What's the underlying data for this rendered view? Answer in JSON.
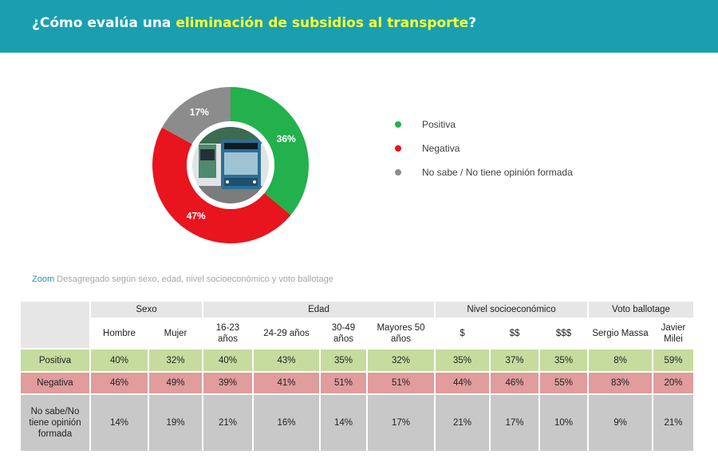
{
  "header": {
    "title_prefix": "¿Cómo evalúa una ",
    "title_highlight": "eliminación de subsidios al transporte",
    "title_suffix": "?",
    "bg_color": "#1a9fb1",
    "highlight_color": "#ffff33"
  },
  "chart_data": {
    "type": "pie",
    "title": "¿Cómo evalúa una eliminación de subsidios al transporte?",
    "categories": [
      "Positiva",
      "Negativa",
      "No sabe / No tiene opinión formada"
    ],
    "values": [
      36,
      47,
      17
    ],
    "labels": [
      "36%",
      "47%",
      "17%"
    ],
    "colors": [
      "#22b14c",
      "#e8141e",
      "#8c8c8c"
    ],
    "legend": "right"
  },
  "legend": {
    "items": [
      {
        "label": "Positiva",
        "color": "#22b14c"
      },
      {
        "label": "Negativa",
        "color": "#e8141e"
      },
      {
        "label": "No sabe / No tiene opinión formada",
        "color": "#8c8c8c"
      }
    ]
  },
  "zoom": {
    "label": "Zoom",
    "text": " Desagregado según sexo, edad, nivel socioeconómico y voto ballotage"
  },
  "table": {
    "groups": [
      {
        "label": "Sexo",
        "span": 2
      },
      {
        "label": "Edad",
        "span": 4
      },
      {
        "label": "Nivel socioeconómico",
        "span": 3
      },
      {
        "label": "Voto ballotage",
        "span": 2
      }
    ],
    "columns": [
      "Hombre",
      "Mujer",
      "16-23 años",
      "24-29 años",
      "30-49 años",
      "Mayores 50 años",
      "$",
      "$$",
      "$$$",
      "Sergio Massa",
      "Javier Milei"
    ],
    "rows": [
      {
        "label": "Positiva",
        "values": [
          "40%",
          "32%",
          "40%",
          "43%",
          "35%",
          "32%",
          "35%",
          "37%",
          "35%",
          "8%",
          "59%"
        ]
      },
      {
        "label": "Negativa",
        "values": [
          "46%",
          "49%",
          "39%",
          "41%",
          "51%",
          "51%",
          "44%",
          "46%",
          "55%",
          "83%",
          "20%"
        ]
      },
      {
        "label": "No sabe/No tiene opinión formada",
        "values": [
          "14%",
          "19%",
          "21%",
          "16%",
          "14%",
          "17%",
          "21%",
          "17%",
          "10%",
          "9%",
          "21%"
        ]
      }
    ]
  }
}
